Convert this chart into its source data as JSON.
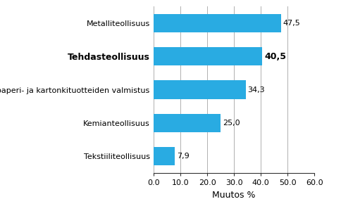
{
  "categories": [
    "Tekstiiliteollisuus",
    "Kemianteollisuus",
    "Paperin, paperi- ja kartonkituotteiden valmistus",
    "Tehdasteollisuus",
    "Metalliteollisuus"
  ],
  "values": [
    7.9,
    25.0,
    34.3,
    40.5,
    47.5
  ],
  "bold_index": 3,
  "bar_color": "#29abe2",
  "xlabel": "Muutos %",
  "xlim": [
    0,
    60
  ],
  "xticks": [
    0,
    10,
    20,
    30,
    40,
    50,
    60
  ],
  "xtick_labels": [
    "0.0",
    "10.0",
    "20.0",
    "30.0",
    "40.0",
    "50.0",
    "60.0"
  ],
  "value_labels": [
    "7,9",
    "25,0",
    "34,3",
    "40,5",
    "47,5"
  ],
  "background_color": "#ffffff",
  "grid_color": "#b0b0b0",
  "label_fontsize": 8,
  "value_fontsize": 8,
  "xlabel_fontsize": 9,
  "bar_height": 0.55
}
